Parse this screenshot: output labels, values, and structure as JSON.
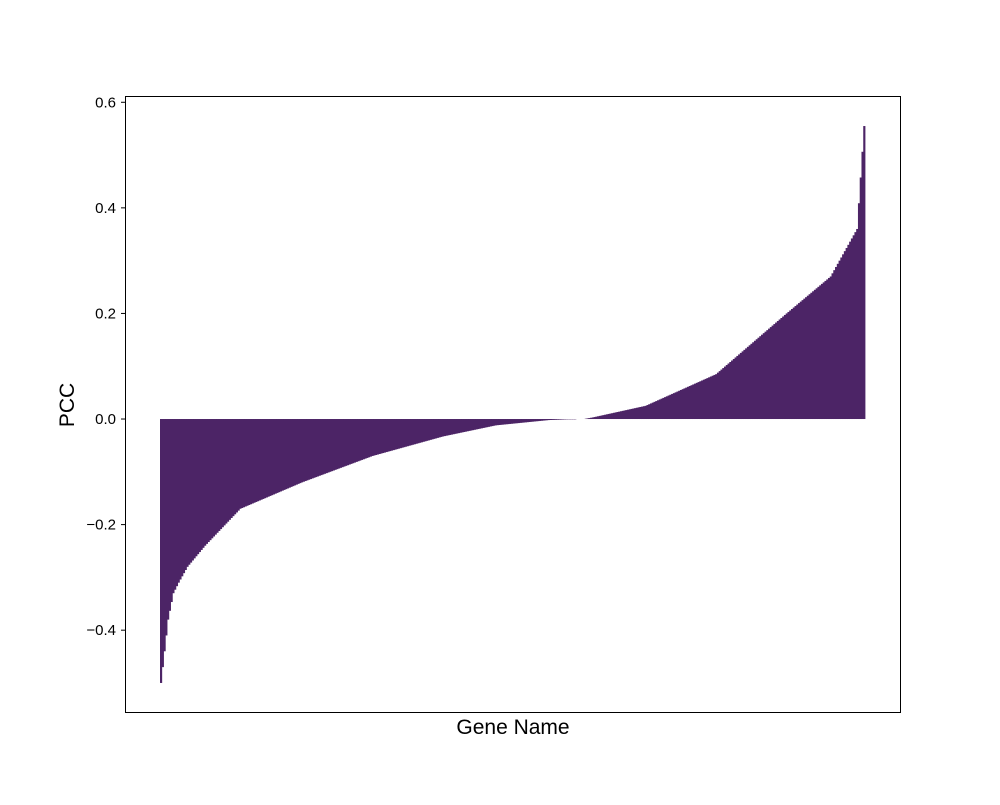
{
  "chart_data": {
    "type": "bar",
    "title": "",
    "xlabel": "Gene Name",
    "ylabel": "PCC",
    "ylim": [
      -0.555,
      0.61
    ],
    "yticks": [
      0.6,
      0.4,
      0.2,
      0.0,
      -0.2,
      -0.4
    ],
    "ytick_labels": [
      "0.6",
      "0.4",
      "0.2",
      "0.0",
      "−0.2",
      "−0.4"
    ],
    "xticks": [],
    "grid": false,
    "legend": "none",
    "bar_color": "#4c2466",
    "sorted": "ascending",
    "bar_count": 400,
    "values_profile": {
      "x": [
        0,
        2,
        4,
        7,
        10,
        15,
        25,
        45,
        80,
        120,
        160,
        190,
        220,
        235,
        236,
        239,
        240,
        245,
        275,
        315,
        355,
        380,
        395,
        399
      ],
      "y": [
        -0.5,
        -0.44,
        -0.38,
        -0.33,
        -0.31,
        -0.28,
        -0.24,
        -0.17,
        -0.12,
        -0.07,
        -0.033,
        -0.012,
        -0.002,
        0.0,
        null,
        null,
        0.0,
        0.003,
        0.025,
        0.085,
        0.2,
        0.27,
        0.36,
        0.555
      ]
    }
  }
}
